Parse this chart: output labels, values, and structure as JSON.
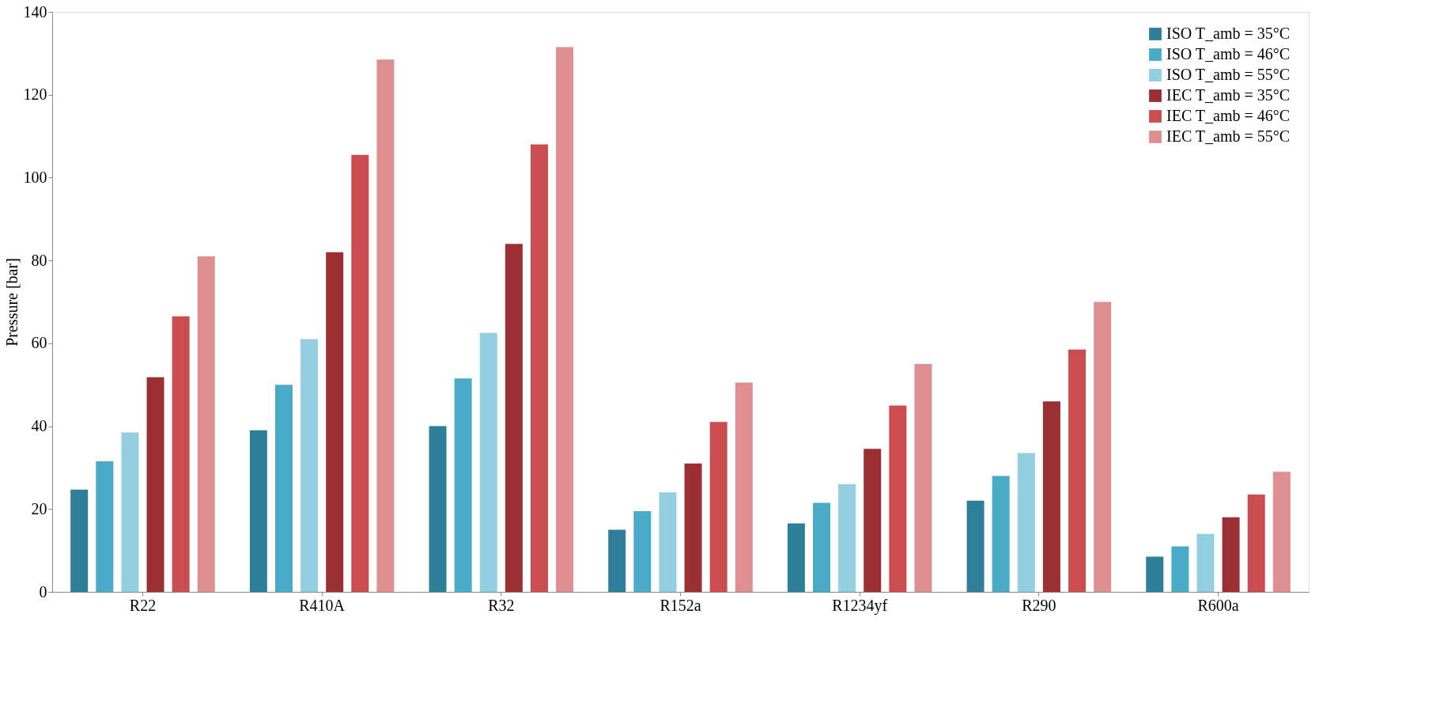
{
  "chart_data": {
    "type": "bar",
    "ylabel": "Pressure [bar]",
    "categories": [
      "R22",
      "R410A",
      "R32",
      "R152a",
      "R1234yf",
      "R290",
      "R600a"
    ],
    "series": [
      {
        "name": "ISO  T_amb = 35°C",
        "color": "#2e7f9a",
        "values": [
          24.7,
          39,
          40,
          15,
          16.5,
          22,
          8.5
        ]
      },
      {
        "name": "ISO  T_amb = 46°C",
        "color": "#4aabc8",
        "values": [
          31.5,
          50,
          51.5,
          19.5,
          21.5,
          28,
          11
        ]
      },
      {
        "name": "ISO  T_amb = 55°C",
        "color": "#92cfe0",
        "values": [
          38.5,
          61,
          62.5,
          24,
          26,
          33.5,
          14
        ]
      },
      {
        "name": "IEC T_amb = 35°C",
        "color": "#9b2f32",
        "values": [
          51.8,
          82,
          84,
          31,
          34.5,
          46,
          18
        ]
      },
      {
        "name": "IEC T_amb = 46°C",
        "color": "#cc4d4f",
        "values": [
          66.5,
          105.5,
          108,
          41,
          45,
          58.5,
          23.5
        ]
      },
      {
        "name": "IEC T_amb = 55°C",
        "color": "#df8f92",
        "values": [
          81,
          128.5,
          131.5,
          50.5,
          55,
          70,
          29
        ]
      }
    ],
    "ylim": [
      0,
      140
    ],
    "yticks": [
      0,
      20,
      40,
      60,
      80,
      100,
      120,
      140
    ],
    "grid": false,
    "legend": "top right"
  }
}
